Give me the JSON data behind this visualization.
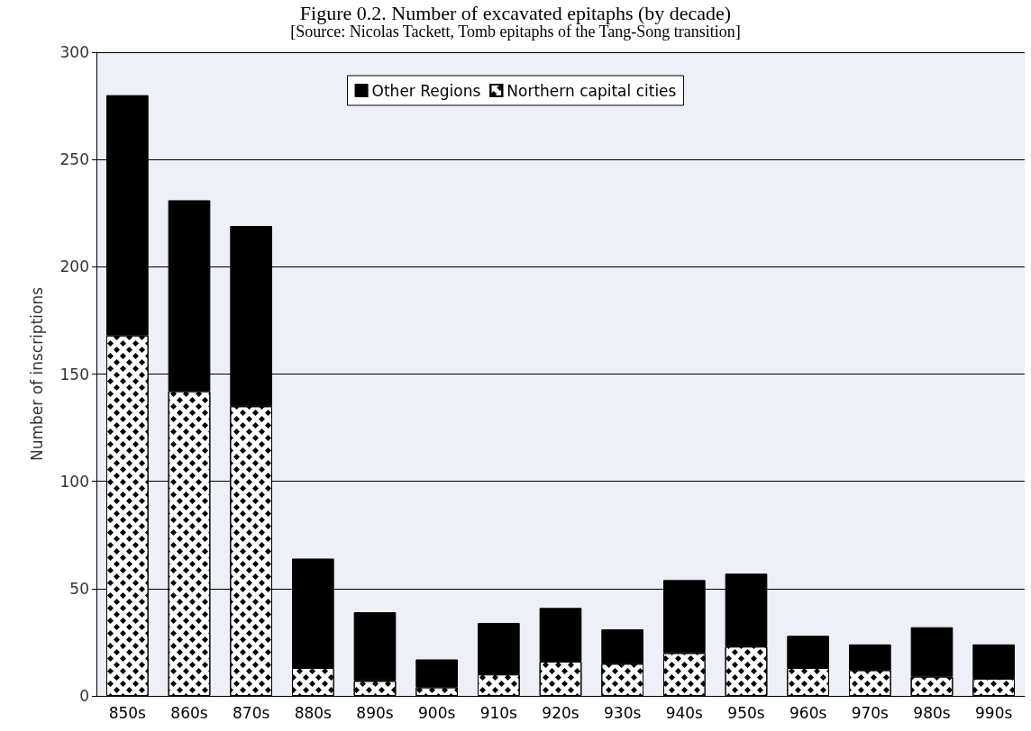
{
  "chart_data": {
    "type": "bar",
    "title": "Figure 0.2. Number of excavated epitaphs (by decade)",
    "subtitle": "[Source: Nicolas Tackett, Tomb epitaphs of the Tang-Song transition]",
    "ylabel": "Number of inscriptions",
    "categories": [
      "850s",
      "860s",
      "870s",
      "880s",
      "890s",
      "900s",
      "910s",
      "920s",
      "930s",
      "940s",
      "950s",
      "960s",
      "970s",
      "980s",
      "990s"
    ],
    "stacked": true,
    "series": [
      {
        "name": "Northern capital cities",
        "color": "#ffffff",
        "values": [
          168,
          142,
          135,
          13,
          7,
          4,
          10,
          16,
          15,
          20,
          23,
          13,
          12,
          9,
          8
        ]
      },
      {
        "name": "Other Regions",
        "color": "#000000",
        "values": [
          112,
          89,
          84,
          51,
          32,
          13,
          24,
          25,
          16,
          34,
          34,
          15,
          12,
          23,
          16
        ]
      }
    ],
    "ylim": [
      0,
      300
    ],
    "yticks": [
      0,
      50,
      100,
      150,
      200,
      250,
      300
    ],
    "grid": "y",
    "legend": "top"
  }
}
